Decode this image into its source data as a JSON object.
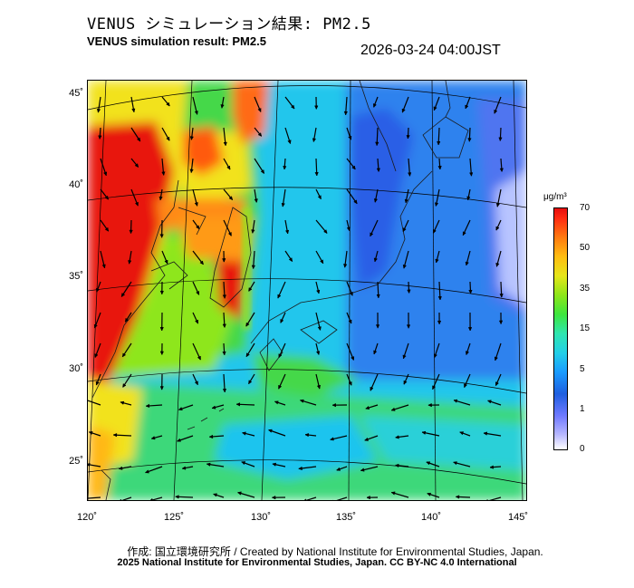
{
  "header": {
    "title_ja": "VENUS シミュレーション結果: PM2.5",
    "title_en": "VENUS simulation result: PM2.5",
    "timestamp": "2026-03-24 04:00JST"
  },
  "map": {
    "lat_labels": [
      "45˚",
      "40˚",
      "35˚",
      "30˚",
      "25˚"
    ],
    "lon_labels": [
      "120˚",
      "125˚",
      "130˚",
      "135˚",
      "140˚",
      "145˚"
    ],
    "colors": {
      "very_high": "#e8180e",
      "high": "#ff8a12",
      "elevated": "#f2e21a",
      "moderate": "#45d84a",
      "low_green": "#37dfa4",
      "low": "#20bdf0",
      "very_low": "#2a6be8",
      "minimal": "#b8c4ff"
    }
  },
  "colorbar": {
    "unit": "μg/m³",
    "ticks": [
      "70",
      "50",
      "35",
      "15",
      "5",
      "1",
      "0"
    ]
  },
  "footer": {
    "credit": "作成: 国立環境研究所 / Created by National Institute for Environmental Studies, Japan.",
    "copyright": "2025 National Institute for Environmental Studies, Japan. CC BY-NC 4.0 International"
  }
}
